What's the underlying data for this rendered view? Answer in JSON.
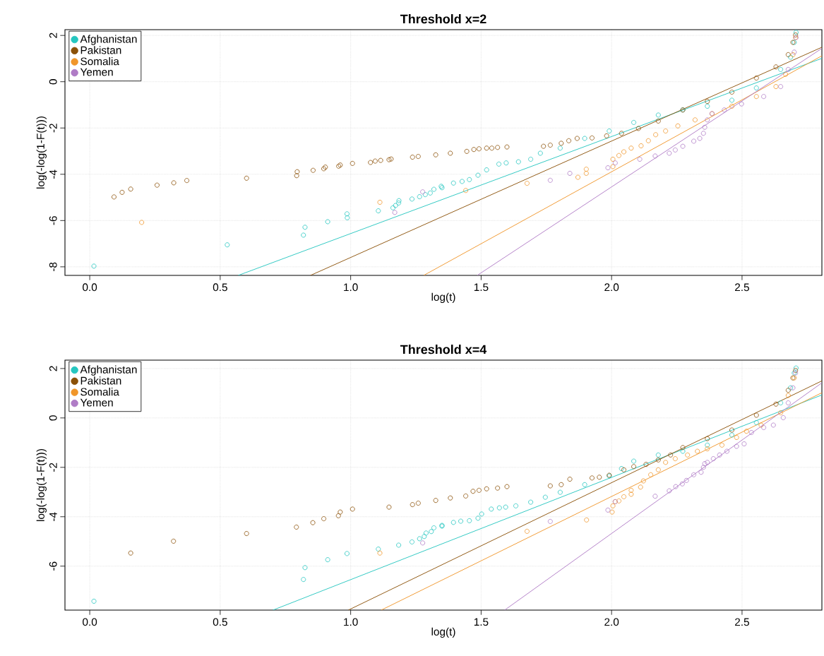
{
  "chart_data": [
    {
      "type": "scatter",
      "title": "Threshold x=2",
      "xlabel": "log(t)",
      "ylabel": "log(-log(1-F(t)))",
      "xlim": [
        -0.095,
        2.806
      ],
      "ylim": [
        -8.37,
        2.25
      ],
      "xticks": [
        {
          "value": 0,
          "label": "0.0"
        },
        {
          "value": 0.5,
          "label": "0.5"
        },
        {
          "value": 1,
          "label": "1.0"
        },
        {
          "value": 1.5,
          "label": "1.5"
        },
        {
          "value": 2,
          "label": "2.0"
        },
        {
          "value": 2.5,
          "label": "2.5"
        }
      ],
      "yticks": [
        -8,
        -6,
        -4,
        -2,
        0,
        2
      ],
      "grid": true,
      "legend": "top left",
      "series": [
        {
          "name": "Afghanistan",
          "type": "scatter",
          "marker": "circle",
          "color": "#26c6c0",
          "x": [
            0.016,
            0.527,
            0.819,
            0.825,
            0.912,
            0.986,
            0.987,
            1.106,
            1.162,
            1.172,
            1.184,
            1.185,
            1.235,
            1.264,
            1.286,
            1.305,
            1.319,
            1.35,
            1.347,
            1.394,
            1.427,
            1.455,
            1.488,
            1.521,
            1.568,
            1.596,
            1.643,
            1.69,
            1.727,
            1.803,
            1.897,
            1.991,
            2.085,
            2.179,
            2.273,
            2.367,
            2.461,
            2.555,
            2.648,
            2.686,
            2.7,
            2.707
          ],
          "values": [
            -7.97,
            -7.05,
            -6.63,
            -6.29,
            -6.05,
            -5.71,
            -5.88,
            -5.58,
            -5.45,
            -5.35,
            -5.24,
            -5.14,
            -5.07,
            -4.97,
            -4.88,
            -4.81,
            -4.65,
            -4.58,
            -4.52,
            -4.38,
            -4.31,
            -4.23,
            -4.04,
            -3.81,
            -3.56,
            -3.51,
            -3.46,
            -3.35,
            -3.09,
            -2.87,
            -2.45,
            -2.13,
            -1.76,
            -1.44,
            -1.22,
            -1.06,
            -0.8,
            -0.27,
            0.53,
            1.06,
            1.7,
            2.13
          ]
        },
        {
          "name": "Pakistan",
          "type": "scatter",
          "marker": "circle",
          "color": "#8b5108",
          "x": [
            0.093,
            0.124,
            0.157,
            0.258,
            0.322,
            0.372,
            0.601,
            0.793,
            0.795,
            0.856,
            0.897,
            0.903,
            0.954,
            0.96,
            1.007,
            1.076,
            1.094,
            1.115,
            1.147,
            1.155,
            1.237,
            1.259,
            1.326,
            1.382,
            1.445,
            1.472,
            1.492,
            1.521,
            1.541,
            1.563,
            1.599,
            1.739,
            1.765,
            1.807,
            1.836,
            1.868,
            1.925,
            1.981,
            2.038,
            2.103,
            2.179,
            2.273,
            2.367,
            2.461,
            2.555,
            2.63,
            2.677,
            2.695,
            2.705
          ],
          "values": [
            -4.98,
            -4.78,
            -4.64,
            -4.47,
            -4.37,
            -4.27,
            -4.17,
            -4.06,
            -3.89,
            -3.83,
            -3.76,
            -3.69,
            -3.65,
            -3.6,
            -3.53,
            -3.49,
            -3.43,
            -3.4,
            -3.37,
            -3.34,
            -3.26,
            -3.23,
            -3.16,
            -3.09,
            -3.01,
            -2.93,
            -2.9,
            -2.87,
            -2.87,
            -2.84,
            -2.82,
            -2.79,
            -2.74,
            -2.66,
            -2.55,
            -2.45,
            -2.43,
            -2.34,
            -2.23,
            -2.02,
            -1.7,
            -1.22,
            -0.85,
            -0.45,
            0.16,
            0.64,
            1.17,
            1.7,
            2.02
          ]
        },
        {
          "name": "Somalia",
          "type": "scatter",
          "marker": "circle",
          "color": "#f0962a",
          "x": [
            0.199,
            1.112,
            1.441,
            1.676,
            1.871,
            1.903,
            1.903,
            2.005,
            2.005,
            2.028,
            2.047,
            2.075,
            2.113,
            2.141,
            2.169,
            2.207,
            2.254,
            2.32,
            2.385,
            2.461,
            2.555,
            2.63,
            2.667,
            2.695,
            2.705
          ],
          "values": [
            -6.08,
            -5.21,
            -4.7,
            -4.39,
            -4.13,
            -3.96,
            -3.78,
            -3.67,
            -3.35,
            -3.19,
            -3.03,
            -2.87,
            -2.77,
            -2.55,
            -2.29,
            -2.13,
            -1.91,
            -1.65,
            -1.38,
            -1.06,
            -0.64,
            -0.21,
            0.32,
            1.17,
            1.91
          ]
        },
        {
          "name": "Yemen",
          "type": "scatter",
          "marker": "circle",
          "color": "#b07cc6",
          "x": [
            1.169,
            1.276,
            1.765,
            1.84,
            1.986,
            2.014,
            2.108,
            2.167,
            2.221,
            2.244,
            2.273,
            2.315,
            2.338,
            2.352,
            2.357,
            2.367,
            2.385,
            2.432,
            2.498,
            2.583,
            2.648,
            2.677,
            2.7,
            2.707
          ],
          "values": [
            -5.65,
            -4.76,
            -4.26,
            -3.96,
            -3.72,
            -3.51,
            -3.35,
            -3.21,
            -3.09,
            -2.95,
            -2.79,
            -2.57,
            -2.45,
            -2.23,
            -1.97,
            -1.65,
            -1.38,
            -1.22,
            -0.96,
            -0.64,
            -0.21,
            0.53,
            1.28,
            1.91
          ]
        },
        {
          "type": "line",
          "color": "#26c6c0",
          "x": [
            0.569,
            2.806
          ],
          "values": [
            -8.37,
            1.01
          ]
        },
        {
          "type": "line",
          "color": "#8b5108",
          "x": [
            0.846,
            2.806
          ],
          "values": [
            -8.37,
            1.49
          ]
        },
        {
          "type": "line",
          "color": "#f0962a",
          "x": [
            1.28,
            2.806
          ],
          "values": [
            -8.37,
            1.12
          ]
        },
        {
          "type": "line",
          "color": "#b07cc6",
          "x": [
            1.485,
            2.806
          ],
          "values": [
            -8.37,
            1.44
          ]
        }
      ]
    },
    {
      "type": "scatter",
      "title": "Threshold x=4",
      "xlabel": "log(t)",
      "ylabel": "log(-log(1-F(t)))",
      "xlim": [
        -0.095,
        2.806
      ],
      "ylim": [
        -7.78,
        2.34
      ],
      "xticks": [
        {
          "value": 0,
          "label": "0.0"
        },
        {
          "value": 0.5,
          "label": "0.5"
        },
        {
          "value": 1,
          "label": "1.0"
        },
        {
          "value": 1.5,
          "label": "1.5"
        },
        {
          "value": 2,
          "label": "2.0"
        },
        {
          "value": 2.5,
          "label": "2.5"
        }
      ],
      "yticks": [
        -6,
        -4,
        -2,
        0,
        2
      ],
      "grid": true,
      "legend": "top left",
      "series": [
        {
          "name": "Afghanistan",
          "type": "scatter",
          "marker": "circle",
          "color": "#26c6c0",
          "x": [
            0.016,
            0.819,
            0.825,
            0.912,
            0.986,
            1.106,
            1.184,
            1.235,
            1.264,
            1.282,
            1.289,
            1.309,
            1.319,
            1.35,
            1.35,
            1.394,
            1.422,
            1.455,
            1.488,
            1.502,
            1.539,
            1.57,
            1.594,
            1.633,
            1.69,
            1.746,
            1.803,
            1.897,
            1.991,
            2.038,
            2.085,
            2.179,
            2.273,
            2.367,
            2.461,
            2.555,
            2.648,
            2.686,
            2.7,
            2.707
          ],
          "values": [
            -7.42,
            -6.54,
            -6.06,
            -5.74,
            -5.49,
            -5.31,
            -5.15,
            -5.02,
            -4.89,
            -4.8,
            -4.66,
            -4.6,
            -4.45,
            -4.35,
            -4.38,
            -4.23,
            -4.18,
            -4.16,
            -4.06,
            -3.89,
            -3.69,
            -3.64,
            -3.61,
            -3.56,
            -3.41,
            -3.21,
            -3.01,
            -2.7,
            -2.35,
            -2.05,
            -1.75,
            -1.5,
            -1.35,
            -1.1,
            -0.69,
            -0.19,
            0.61,
            1.22,
            1.82,
            2.02
          ]
        },
        {
          "name": "Pakistan",
          "type": "scatter",
          "marker": "circle",
          "color": "#8b5108",
          "x": [
            0.157,
            0.321,
            0.601,
            0.792,
            0.855,
            0.897,
            0.953,
            0.96,
            1.007,
            1.147,
            1.237,
            1.259,
            1.326,
            1.382,
            1.441,
            1.469,
            1.492,
            1.521,
            1.563,
            1.599,
            1.765,
            1.807,
            1.84,
            1.925,
            1.953,
            1.991,
            2.047,
            2.085,
            2.132,
            2.179,
            2.226,
            2.273,
            2.367,
            2.461,
            2.555,
            2.63,
            2.677,
            2.695,
            2.705
          ],
          "values": [
            -5.47,
            -4.99,
            -4.68,
            -4.42,
            -4.24,
            -4.08,
            -3.96,
            -3.81,
            -3.69,
            -3.61,
            -3.51,
            -3.45,
            -3.34,
            -3.24,
            -3.16,
            -2.97,
            -2.93,
            -2.87,
            -2.84,
            -2.78,
            -2.75,
            -2.7,
            -2.48,
            -2.43,
            -2.4,
            -2.32,
            -2.1,
            -1.97,
            -1.88,
            -1.7,
            -1.5,
            -1.2,
            -0.84,
            -0.49,
            0.11,
            0.56,
            1.12,
            1.62,
            1.92
          ]
        },
        {
          "name": "Somalia",
          "type": "scatter",
          "marker": "circle",
          "color": "#f0962a",
          "x": [
            1.112,
            1.676,
            1.904,
            2.002,
            2.005,
            2.014,
            2.028,
            2.047,
            2.075,
            2.075,
            2.111,
            2.122,
            2.15,
            2.179,
            2.207,
            2.244,
            2.291,
            2.329,
            2.367,
            2.423,
            2.479,
            2.517,
            2.573,
            2.648,
            2.677,
            2.7
          ],
          "values": [
            -5.47,
            -4.59,
            -4.13,
            -3.81,
            -3.56,
            -3.39,
            -3.36,
            -3.19,
            -3.09,
            -2.93,
            -2.8,
            -2.55,
            -2.3,
            -2.1,
            -1.8,
            -1.65,
            -1.5,
            -1.35,
            -1.25,
            -1.1,
            -0.79,
            -0.54,
            -0.29,
            0.21,
            0.91,
            1.62
          ]
        },
        {
          "name": "Yemen",
          "type": "scatter",
          "marker": "circle",
          "color": "#b07cc6",
          "x": [
            1.276,
            1.765,
            1.986,
            2.014,
            2.167,
            2.221,
            2.246,
            2.271,
            2.287,
            2.315,
            2.343,
            2.352,
            2.357,
            2.367,
            2.39,
            2.414,
            2.442,
            2.479,
            2.508,
            2.536,
            2.583,
            2.62,
            2.658,
            2.677,
            2.695,
            2.705
          ],
          "values": [
            -5.06,
            -4.19,
            -3.73,
            -3.39,
            -3.17,
            -2.95,
            -2.78,
            -2.67,
            -2.53,
            -2.3,
            -2.2,
            -2.0,
            -1.85,
            -1.8,
            -1.65,
            -1.5,
            -1.35,
            -1.15,
            -1.05,
            -0.59,
            -0.39,
            -0.29,
            0.01,
            0.61,
            1.22,
            1.82
          ]
        },
        {
          "type": "line",
          "color": "#26c6c0",
          "x": [
            0.702,
            2.806
          ],
          "values": [
            -7.78,
            0.93
          ]
        },
        {
          "type": "line",
          "color": "#8b5108",
          "x": [
            0.991,
            2.806
          ],
          "values": [
            -7.78,
            1.5
          ]
        },
        {
          "type": "line",
          "color": "#f0962a",
          "x": [
            1.117,
            2.806
          ],
          "values": [
            -7.78,
            1.02
          ]
        },
        {
          "type": "line",
          "color": "#b07cc6",
          "x": [
            1.59,
            2.806
          ],
          "values": [
            -7.78,
            1.42
          ]
        }
      ]
    }
  ]
}
